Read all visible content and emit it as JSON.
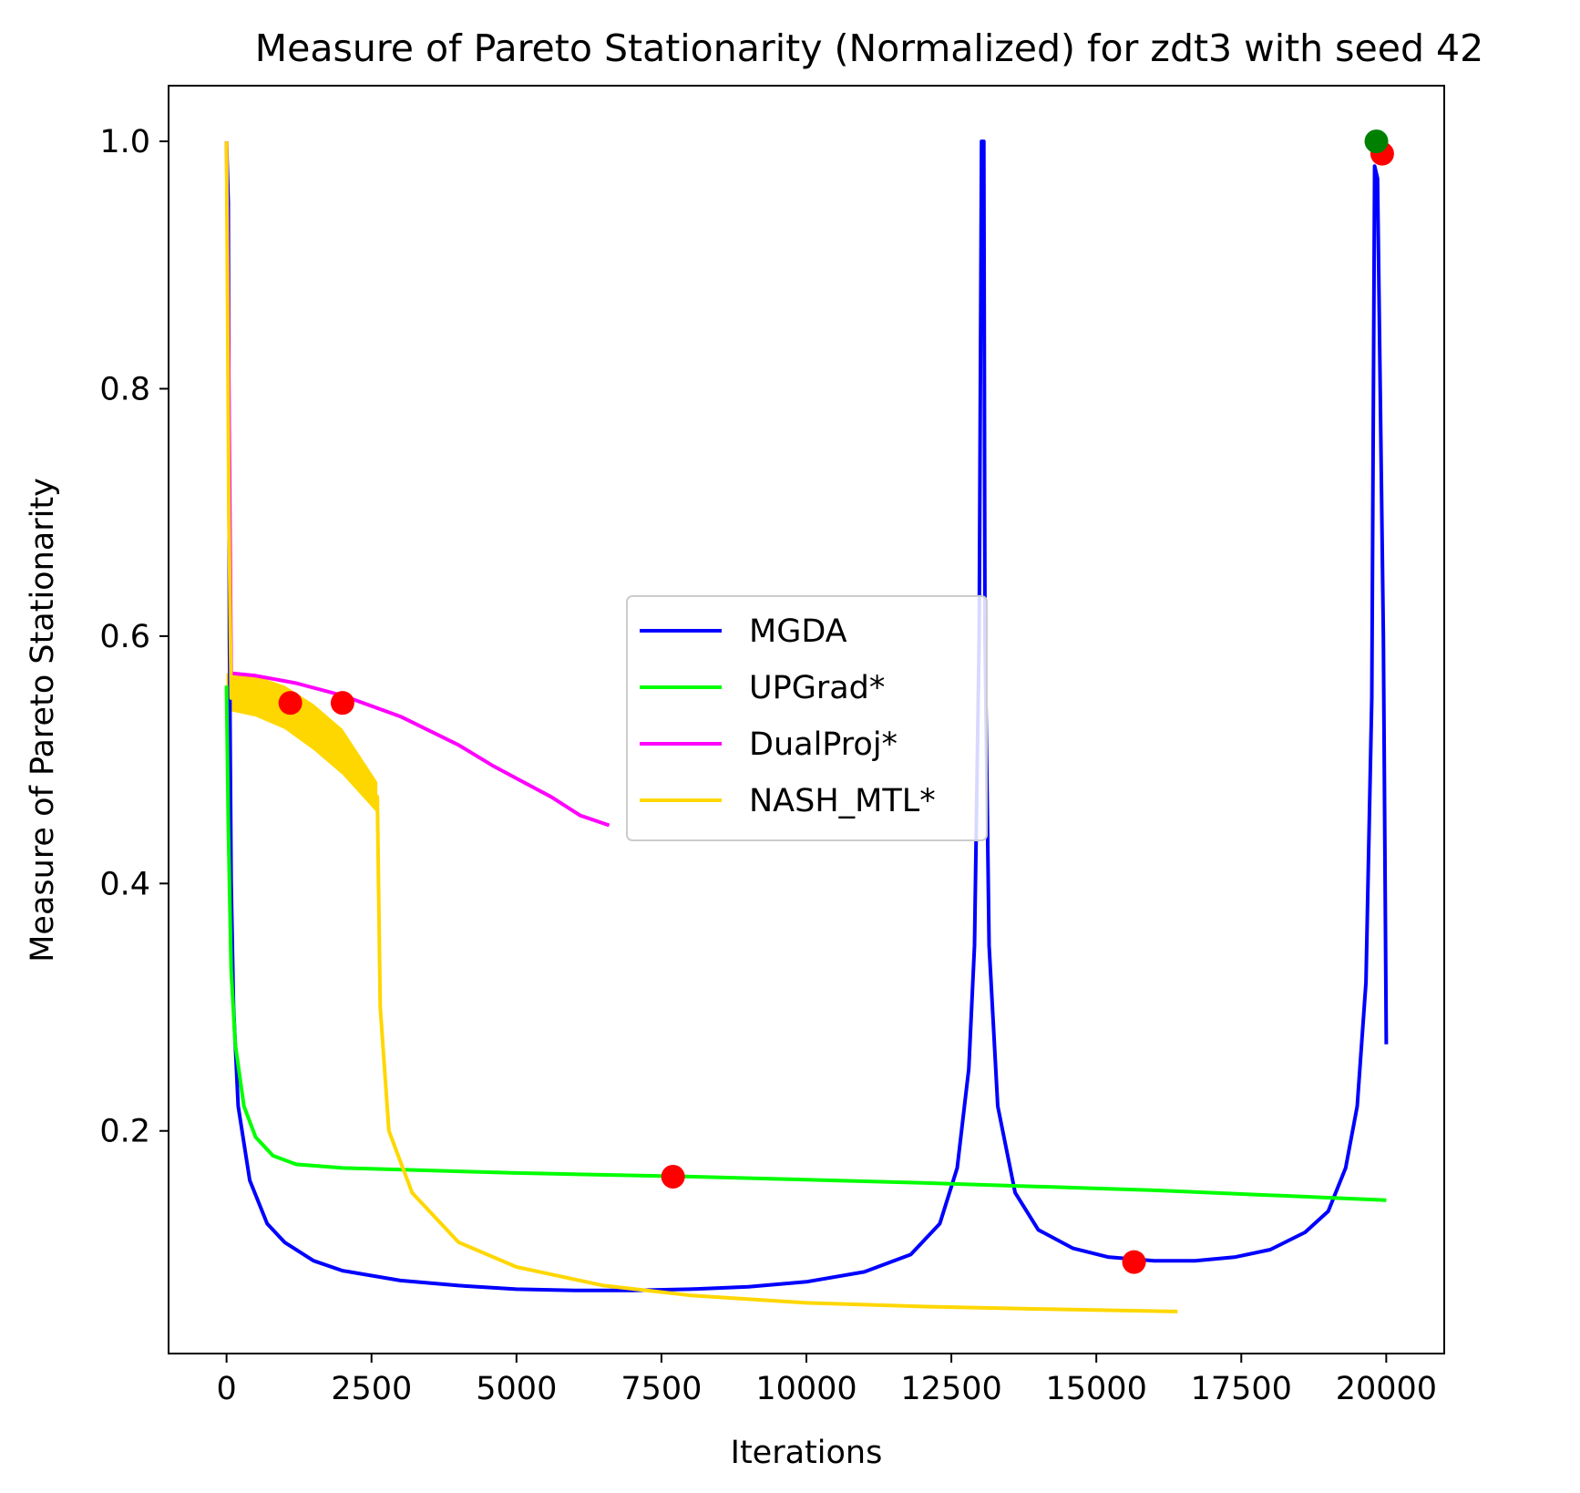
{
  "chart_data": {
    "type": "line",
    "title": "Measure of Pareto Stationarity (Normalized) for zdt3 with seed 42",
    "xlabel": "Iterations",
    "ylabel": "Measure of Pareto Stationarity",
    "xlim": [
      -1000,
      21000
    ],
    "ylim": [
      0.02,
      1.045
    ],
    "xticks": [
      0,
      2500,
      5000,
      7500,
      10000,
      12500,
      15000,
      17500,
      20000
    ],
    "xtick_labels": [
      "0",
      "2500",
      "5000",
      "7500",
      "10000",
      "12500",
      "15000",
      "17500",
      "20000"
    ],
    "yticks": [
      0.2,
      0.4,
      0.6,
      0.8,
      1.0
    ],
    "ytick_labels": [
      "0.2",
      "0.4",
      "0.6",
      "0.8",
      "1.0"
    ],
    "grid": false,
    "legend_position": "center-right",
    "series": [
      {
        "name": "MGDA",
        "color": "#0000ff",
        "points": [
          [
            0,
            1.0
          ],
          [
            30,
            0.95
          ],
          [
            50,
            0.6
          ],
          [
            80,
            0.4
          ],
          [
            120,
            0.3
          ],
          [
            200,
            0.22
          ],
          [
            400,
            0.16
          ],
          [
            700,
            0.125
          ],
          [
            1000,
            0.11
          ],
          [
            1500,
            0.095
          ],
          [
            2000,
            0.087
          ],
          [
            3000,
            0.079
          ],
          [
            4000,
            0.075
          ],
          [
            5000,
            0.072
          ],
          [
            6000,
            0.071
          ],
          [
            7000,
            0.071
          ],
          [
            8000,
            0.072
          ],
          [
            9000,
            0.074
          ],
          [
            10000,
            0.078
          ],
          [
            11000,
            0.086
          ],
          [
            11800,
            0.1
          ],
          [
            12300,
            0.125
          ],
          [
            12600,
            0.17
          ],
          [
            12800,
            0.25
          ],
          [
            12900,
            0.35
          ],
          [
            12980,
            0.6
          ],
          [
            13020,
            1.0
          ],
          [
            13060,
            1.0
          ],
          [
            13080,
            0.6
          ],
          [
            13150,
            0.35
          ],
          [
            13300,
            0.22
          ],
          [
            13600,
            0.15
          ],
          [
            14000,
            0.12
          ],
          [
            14600,
            0.105
          ],
          [
            15200,
            0.098
          ],
          [
            16000,
            0.095
          ],
          [
            16700,
            0.095
          ],
          [
            17400,
            0.098
          ],
          [
            18000,
            0.104
          ],
          [
            18600,
            0.118
          ],
          [
            19000,
            0.135
          ],
          [
            19300,
            0.17
          ],
          [
            19500,
            0.22
          ],
          [
            19650,
            0.32
          ],
          [
            19750,
            0.55
          ],
          [
            19800,
            0.98
          ],
          [
            19850,
            0.97
          ],
          [
            19950,
            0.6
          ],
          [
            20000,
            0.27
          ]
        ]
      },
      {
        "name": "UPGrad*",
        "color": "#00ff00",
        "points": [
          [
            0,
            0.56
          ],
          [
            30,
            0.45
          ],
          [
            80,
            0.33
          ],
          [
            150,
            0.27
          ],
          [
            300,
            0.22
          ],
          [
            500,
            0.195
          ],
          [
            800,
            0.18
          ],
          [
            1200,
            0.173
          ],
          [
            2000,
            0.17
          ],
          [
            5000,
            0.166
          ],
          [
            8000,
            0.163
          ],
          [
            12000,
            0.158
          ],
          [
            16000,
            0.152
          ],
          [
            20000,
            0.144
          ]
        ]
      },
      {
        "name": "DualProj*",
        "color": "#ff00ff",
        "points": [
          [
            0,
            1.0
          ],
          [
            40,
            0.8
          ],
          [
            80,
            0.57
          ],
          [
            500,
            0.568
          ],
          [
            1200,
            0.562
          ],
          [
            2000,
            0.552
          ],
          [
            3000,
            0.535
          ],
          [
            4000,
            0.512
          ],
          [
            4600,
            0.495
          ],
          [
            5000,
            0.485
          ],
          [
            5600,
            0.47
          ],
          [
            6100,
            0.455
          ],
          [
            6600,
            0.447
          ]
        ]
      },
      {
        "name": "NASH_MTL*",
        "color": "#ffd700",
        "points": [
          [
            0,
            1.0
          ],
          [
            40,
            0.7
          ],
          [
            80,
            0.55
          ],
          [
            500,
            0.552
          ],
          [
            1000,
            0.54
          ],
          [
            1500,
            0.525
          ],
          [
            2000,
            0.505
          ],
          [
            2600,
            0.47
          ],
          [
            2650,
            0.3
          ],
          [
            2800,
            0.2
          ],
          [
            3200,
            0.15
          ],
          [
            4000,
            0.11
          ],
          [
            5000,
            0.09
          ],
          [
            6500,
            0.075
          ],
          [
            8000,
            0.067
          ],
          [
            10000,
            0.061
          ],
          [
            12000,
            0.058
          ],
          [
            14000,
            0.056
          ],
          [
            16400,
            0.054
          ]
        ]
      }
    ],
    "nash_band": {
      "upper": [
        [
          0,
          0.57
        ],
        [
          500,
          0.568
        ],
        [
          1000,
          0.56
        ],
        [
          1500,
          0.545
        ],
        [
          2000,
          0.525
        ],
        [
          2600,
          0.482
        ]
      ],
      "lower": [
        [
          0,
          0.54
        ],
        [
          500,
          0.535
        ],
        [
          1000,
          0.525
        ],
        [
          1500,
          0.508
        ],
        [
          2000,
          0.488
        ],
        [
          2600,
          0.457
        ]
      ]
    },
    "markers": [
      {
        "x": 1100,
        "y": 0.546,
        "color": "#ff0000"
      },
      {
        "x": 2000,
        "y": 0.546,
        "color": "#ff0000"
      },
      {
        "x": 7700,
        "y": 0.163,
        "color": "#ff0000"
      },
      {
        "x": 15650,
        "y": 0.094,
        "color": "#ff0000"
      },
      {
        "x": 19930,
        "y": 0.99,
        "color": "#ff0000"
      },
      {
        "x": 19830,
        "y": 1.0,
        "color": "#008000"
      }
    ]
  }
}
